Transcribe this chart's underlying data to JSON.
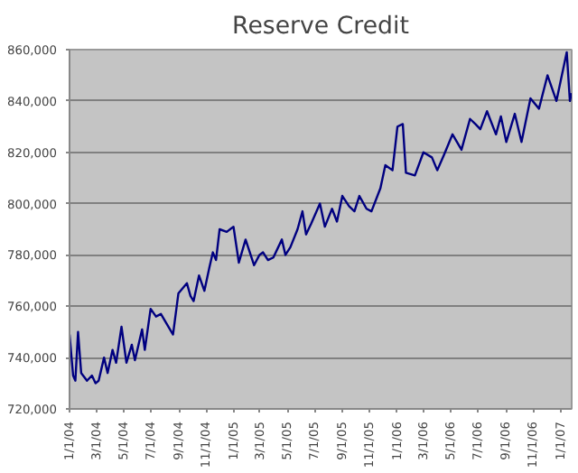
{
  "chart_data": {
    "type": "line",
    "title": "Reserve Credit",
    "x": [
      "2004-01-01",
      "2004-01-09",
      "2004-01-14",
      "2004-01-20",
      "2004-01-27",
      "2004-02-09",
      "2004-02-20",
      "2004-02-28",
      "2004-03-06",
      "2004-03-18",
      "2004-03-26",
      "2004-04-06",
      "2004-04-14",
      "2004-04-26",
      "2004-05-07",
      "2004-05-19",
      "2004-05-26",
      "2004-06-11",
      "2004-06-17",
      "2004-06-30",
      "2004-07-12",
      "2004-07-23",
      "2004-08-19",
      "2004-08-31",
      "2004-09-19",
      "2004-09-27",
      "2004-10-04",
      "2004-10-16",
      "2004-10-28",
      "2004-11-08",
      "2004-11-16",
      "2004-11-23",
      "2004-12-01",
      "2004-12-17",
      "2005-01-01",
      "2005-01-13",
      "2005-01-28",
      "2005-02-16",
      "2005-02-28",
      "2005-03-08",
      "2005-03-19",
      "2005-03-31",
      "2005-04-19",
      "2005-04-27",
      "2005-05-08",
      "2005-05-24",
      "2005-06-04",
      "2005-06-12",
      "2005-06-23",
      "2005-07-13",
      "2005-07-24",
      "2005-08-09",
      "2005-08-20",
      "2005-09-01",
      "2005-09-16",
      "2005-09-28",
      "2005-10-09",
      "2005-10-25",
      "2005-11-05",
      "2005-11-25",
      "2005-12-06",
      "2005-12-22",
      "2006-01-02",
      "2006-01-14",
      "2006-01-21",
      "2006-02-10",
      "2006-03-01",
      "2006-03-20",
      "2006-04-01",
      "2006-04-16",
      "2006-05-05",
      "2006-05-25",
      "2006-06-13",
      "2006-06-25",
      "2006-07-06",
      "2006-07-21",
      "2006-08-10",
      "2006-08-21",
      "2006-09-02",
      "2006-09-21",
      "2006-10-06",
      "2006-10-26",
      "2006-11-14",
      "2006-12-03",
      "2006-12-23",
      "2007-01-15",
      "2007-01-22",
      "2007-01-26"
    ],
    "series": [
      {
        "color": "#000080",
        "values": [
          749000,
          733000,
          731000,
          750000,
          734000,
          731000,
          733000,
          730000,
          731000,
          740000,
          734000,
          743000,
          738000,
          752000,
          738000,
          745000,
          739000,
          751000,
          743000,
          759000,
          756000,
          757000,
          749000,
          765000,
          769000,
          764000,
          762000,
          772000,
          766000,
          775000,
          781000,
          778000,
          790000,
          789000,
          791000,
          777000,
          786000,
          776000,
          780000,
          781000,
          778000,
          779000,
          786000,
          780000,
          783000,
          790000,
          797000,
          788000,
          792000,
          800000,
          791000,
          798000,
          793000,
          803000,
          799000,
          797000,
          803000,
          798000,
          797000,
          806000,
          815000,
          813000,
          830000,
          831000,
          812000,
          811000,
          820000,
          818000,
          813000,
          819000,
          827000,
          821000,
          833000,
          831000,
          829000,
          836000,
          827000,
          834000,
          824000,
          835000,
          824000,
          841000,
          837000,
          850000,
          840000,
          859000,
          840000,
          843000
        ]
      }
    ],
    "xlim": [
      "2004-01-01",
      "2007-01-26"
    ],
    "ylim": [
      720000,
      860000
    ],
    "yticks": [
      {
        "value": 720000,
        "label": "720,000"
      },
      {
        "value": 740000,
        "label": "740,000"
      },
      {
        "value": 760000,
        "label": "760,000"
      },
      {
        "value": 780000,
        "label": "780,000"
      },
      {
        "value": 800000,
        "label": "800,000"
      },
      {
        "value": 820000,
        "label": "820,000"
      },
      {
        "value": 840000,
        "label": "840,000"
      },
      {
        "value": 860000,
        "label": "860,000"
      }
    ],
    "xticks": [
      {
        "value": "2004-01-01",
        "label": "1/1/04"
      },
      {
        "value": "2004-03-01",
        "label": "3/1/04"
      },
      {
        "value": "2004-05-01",
        "label": "5/1/04"
      },
      {
        "value": "2004-07-01",
        "label": "7/1/04"
      },
      {
        "value": "2004-09-01",
        "label": "9/1/04"
      },
      {
        "value": "2004-11-01",
        "label": "11/1/04"
      },
      {
        "value": "2005-01-01",
        "label": "1/1/05"
      },
      {
        "value": "2005-03-01",
        "label": "3/1/05"
      },
      {
        "value": "2005-05-01",
        "label": "5/1/05"
      },
      {
        "value": "2005-07-01",
        "label": "7/1/05"
      },
      {
        "value": "2005-09-01",
        "label": "9/1/05"
      },
      {
        "value": "2005-11-01",
        "label": "11/1/05"
      },
      {
        "value": "2006-01-01",
        "label": "1/1/06"
      },
      {
        "value": "2006-03-01",
        "label": "3/1/06"
      },
      {
        "value": "2006-05-01",
        "label": "5/1/06"
      },
      {
        "value": "2006-07-01",
        "label": "7/1/06"
      },
      {
        "value": "2006-09-01",
        "label": "9/1/06"
      },
      {
        "value": "2006-11-01",
        "label": "11/1/06"
      },
      {
        "value": "2007-01-01",
        "label": "1/1/07"
      }
    ],
    "grid": "y",
    "marker": "none",
    "line_style": "solid"
  }
}
